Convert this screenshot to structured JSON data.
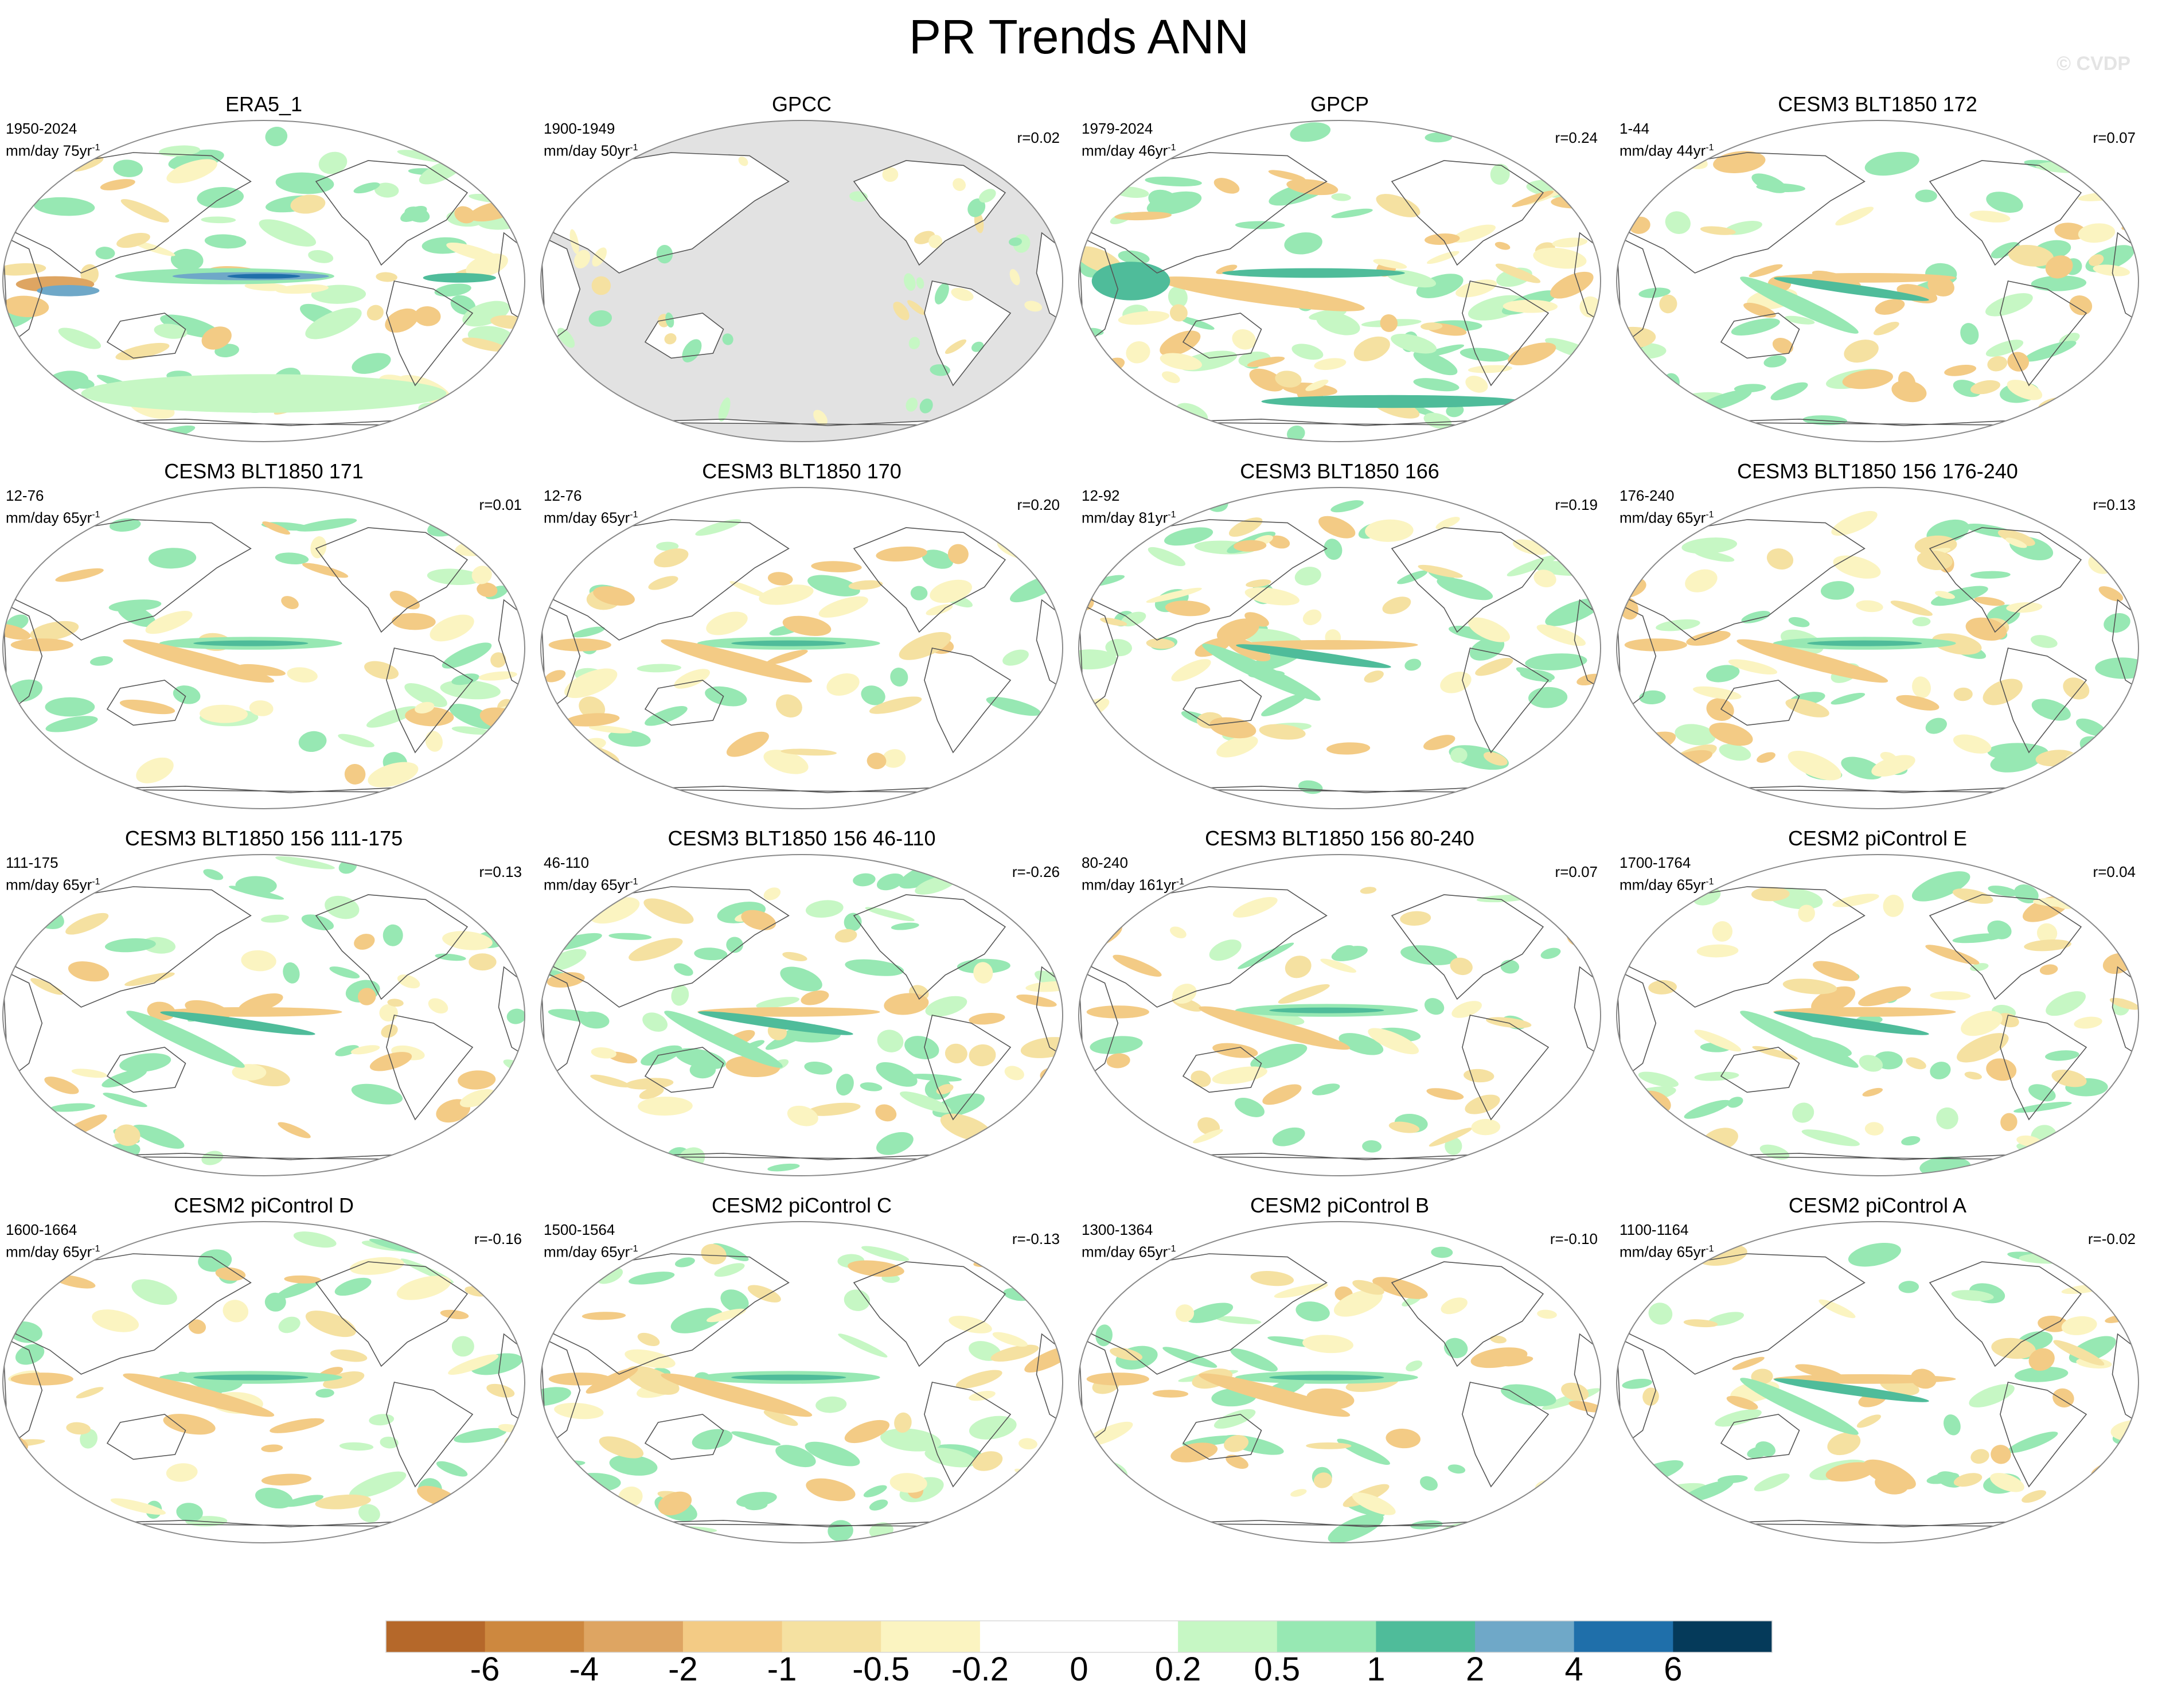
{
  "title": "PR Trends ANN",
  "watermark": "© CVDP",
  "panels": [
    {
      "name": "ERA5_1",
      "period": "1950-2024",
      "units": "mm/day 75yr",
      "corr": "",
      "style": {
        "green": 0.85,
        "brown": 0.45,
        "eqband": "blue",
        "seed": 1
      }
    },
    {
      "name": "GPCC",
      "period": "1900-1949",
      "units": "mm/day 50yr",
      "corr": "r=0.02",
      "style": {
        "green": 0.25,
        "brown": 0.15,
        "eqband": "none",
        "seed": 2,
        "land_only": true
      }
    },
    {
      "name": "GPCP",
      "period": "1979-2024",
      "units": "mm/day 46yr",
      "corr": "r=0.24",
      "style": {
        "green": 0.8,
        "brown": 0.7,
        "eqband": "brown",
        "seed": 3
      }
    },
    {
      "name": "CESM3 BLT1850 172",
      "period": "1-44",
      "units": "mm/day 44yr",
      "corr": "r=0.07",
      "style": {
        "green": 0.6,
        "brown": 0.55,
        "eqband": "mixed",
        "seed": 4
      }
    },
    {
      "name": "CESM3 BLT1850 171",
      "period": "12-76",
      "units": "mm/day 65yr",
      "corr": "r=0.01",
      "style": {
        "green": 0.4,
        "brown": 0.5,
        "eqband": "teal",
        "seed": 5
      }
    },
    {
      "name": "CESM3 BLT1850 170",
      "period": "12-76",
      "units": "mm/day 65yr",
      "corr": "r=0.20",
      "style": {
        "green": 0.4,
        "brown": 0.55,
        "eqband": "teal",
        "seed": 6
      }
    },
    {
      "name": "CESM3 BLT1850 166",
      "period": "12-92",
      "units": "mm/day 81yr",
      "corr": "r=0.19",
      "style": {
        "green": 0.65,
        "brown": 0.6,
        "eqband": "mixed",
        "seed": 7
      }
    },
    {
      "name": "CESM3 BLT1850 156 176-240",
      "period": "176-240",
      "units": "mm/day 65yr",
      "corr": "r=0.13",
      "style": {
        "green": 0.55,
        "brown": 0.7,
        "eqband": "teal",
        "seed": 8
      }
    },
    {
      "name": "CESM3 BLT1850 156 111-175",
      "period": "111-175",
      "units": "mm/day 65yr",
      "corr": "r=0.13",
      "style": {
        "green": 0.45,
        "brown": 0.5,
        "eqband": "mixed",
        "seed": 9
      }
    },
    {
      "name": "CESM3 BLT1850 156 46-110",
      "period": "46-110",
      "units": "mm/day 65yr",
      "corr": "r=-0.26",
      "style": {
        "green": 0.75,
        "brown": 0.5,
        "eqband": "mixed",
        "seed": 10
      }
    },
    {
      "name": "CESM3 BLT1850 156 80-240",
      "period": "80-240",
      "units": "mm/day 161yr",
      "corr": "r=0.07",
      "style": {
        "green": 0.35,
        "brown": 0.45,
        "eqband": "teal",
        "seed": 11
      }
    },
    {
      "name": "CESM2 piControl E",
      "period": "1700-1764",
      "units": "mm/day 65yr",
      "corr": "r=0.04",
      "style": {
        "green": 0.6,
        "brown": 0.55,
        "eqband": "mixed",
        "seed": 12
      }
    },
    {
      "name": "CESM2 piControl D",
      "period": "1600-1664",
      "units": "mm/day 65yr",
      "corr": "r=-0.16",
      "style": {
        "green": 0.55,
        "brown": 0.55,
        "eqband": "teal",
        "seed": 13
      }
    },
    {
      "name": "CESM2 piControl C",
      "period": "1500-1564",
      "units": "mm/day 65yr",
      "corr": "r=-0.13",
      "style": {
        "green": 0.6,
        "brown": 0.5,
        "eqband": "teal",
        "seed": 14
      }
    },
    {
      "name": "CESM2 piControl B",
      "period": "1300-1364",
      "units": "mm/day 65yr",
      "corr": "r=-0.10",
      "style": {
        "green": 0.5,
        "brown": 0.5,
        "eqband": "teal",
        "seed": 15
      }
    },
    {
      "name": "CESM2 piControl A",
      "period": "1100-1164",
      "units": "mm/day 65yr",
      "corr": "r=-0.02",
      "style": {
        "green": 0.45,
        "brown": 0.5,
        "eqband": "mixed",
        "seed": 16
      }
    }
  ],
  "colorbar": {
    "colors": [
      "#b5682a",
      "#cd883f",
      "#dea562",
      "#f3cb85",
      "#f5e1a1",
      "#fbf4c1",
      "#ffffff",
      "#ffffff",
      "#c6f7c4",
      "#97e8b3",
      "#4fbc9a",
      "#6fa8c8",
      "#1f6faa",
      "#053a5a"
    ],
    "labels": [
      "-6",
      "-4",
      "-2",
      "-1",
      "-0.5",
      "-0.2",
      "0",
      "0.2",
      "0.5",
      "1",
      "2",
      "4",
      "6"
    ]
  }
}
